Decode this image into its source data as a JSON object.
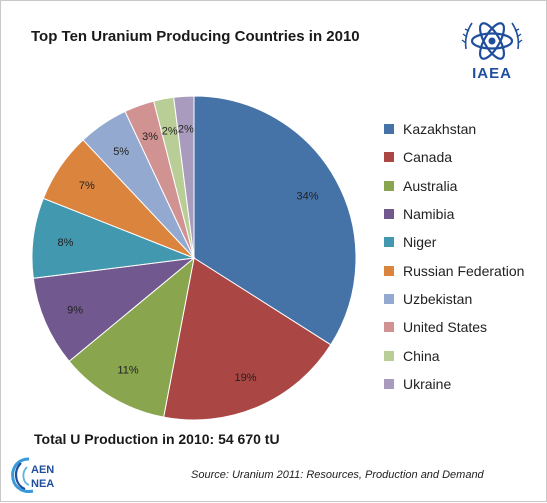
{
  "chart_data": {
    "type": "pie",
    "title": "Top Ten Uranium Producing Countries in 2010",
    "categories": [
      "Kazakhstan",
      "Canada",
      "Australia",
      "Namibia",
      "Niger",
      "Russian Federation",
      "Uzbekistan",
      "United States",
      "China",
      "Ukraine"
    ],
    "values": [
      34,
      19,
      11,
      9,
      8,
      7,
      5,
      3,
      2,
      2
    ],
    "labels": [
      "34%",
      "19%",
      "11%",
      "9%",
      "8%",
      "7%",
      "5%",
      "3%",
      "2%",
      "2%"
    ],
    "colors": [
      "#4572A7",
      "#AA4643",
      "#89A54E",
      "#71588F",
      "#4198AF",
      "#DB843D",
      "#93A9CF",
      "#D19392",
      "#B9CD96",
      "#A99BBD"
    ],
    "legend_position": "right"
  },
  "logos": {
    "iaea_text": "IAEA",
    "nea_text_line1": "AEN",
    "nea_text_line2": "NEA",
    "iaea_icon": "atom-icon",
    "nea_icon": "nea-swirl-icon"
  },
  "footer": {
    "total": "Total U Production in 2010: 54 670 tU",
    "source": "Source: Uranium 2011: Resources, Production and Demand"
  }
}
